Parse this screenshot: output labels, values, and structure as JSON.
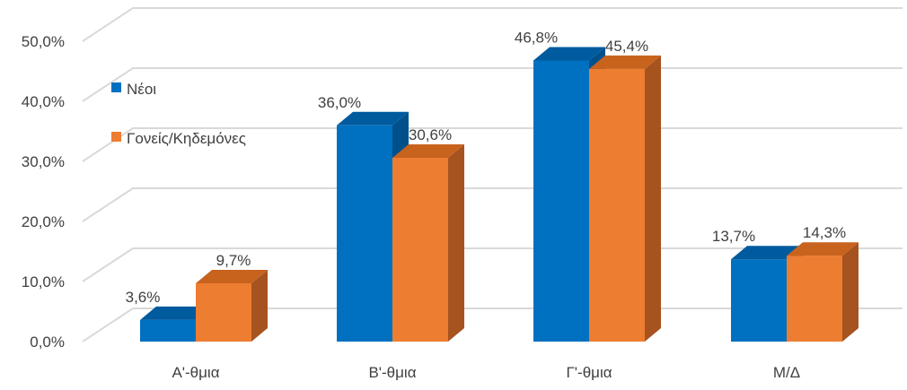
{
  "chart_data": {
    "type": "bar",
    "categories": [
      "Α'-θμια",
      "Β'-θμια",
      "Γ'-θμια",
      "Μ/Δ"
    ],
    "series": [
      {
        "name": "Νέοι",
        "values": [
          3.6,
          36.0,
          46.8,
          13.7
        ],
        "labels": [
          "3,6%",
          "36,0%",
          "46,8%",
          "13,7%"
        ],
        "color": "#0070C0",
        "side_color": "#00508C",
        "top_color": "#005A9E"
      },
      {
        "name": "Γονείς/Κηδεμόνες",
        "values": [
          9.7,
          30.6,
          45.4,
          14.3
        ],
        "labels": [
          "9,7%",
          "30,6%",
          "45,4%",
          "14,3%"
        ],
        "color": "#ED7D31",
        "side_color": "#A65320",
        "top_color": "#C8631E"
      }
    ],
    "y_ticks": [
      0,
      10,
      20,
      30,
      40,
      50
    ],
    "y_tick_labels": [
      "0,0%",
      "10,0%",
      "20,0%",
      "30,0%",
      "40,0%",
      "50,0%"
    ],
    "ylim": [
      0,
      50
    ],
    "grid": true,
    "legend_position": "top-left",
    "three_d": true
  }
}
